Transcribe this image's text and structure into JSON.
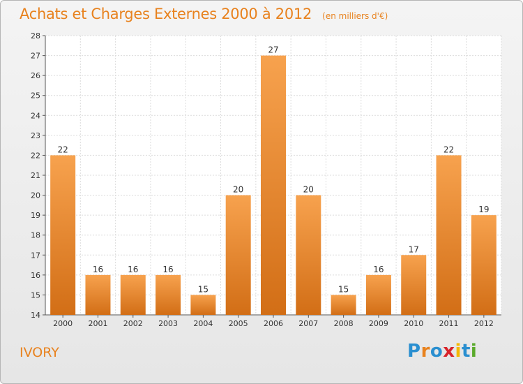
{
  "header": {
    "title": "Achats et Charges Externes 2000 à 2012",
    "unit": "(en milliers d'€)"
  },
  "footer": {
    "commune": "IVORY",
    "logo_letters": [
      "P",
      "r",
      "o",
      "x",
      "i",
      "t",
      "i"
    ],
    "logo_colors": [
      "#2a8fd0",
      "#e8821e",
      "#2a8fd0",
      "#d8232a",
      "#f5b800",
      "#2a8fd0",
      "#5aaa2c"
    ]
  },
  "chart_data": {
    "type": "bar",
    "categories": [
      "2000",
      "2001",
      "2002",
      "2003",
      "2004",
      "2005",
      "2006",
      "2007",
      "2008",
      "2009",
      "2010",
      "2011",
      "2012"
    ],
    "values": [
      22,
      16,
      16,
      16,
      15,
      20,
      27,
      20,
      15,
      16,
      17,
      22,
      19
    ],
    "title": "Achats et Charges Externes 2000 à 2012",
    "subtitle": "(en milliers d'€)",
    "ylim": [
      14,
      28
    ],
    "yticks": [
      14,
      15,
      16,
      17,
      18,
      19,
      20,
      21,
      22,
      23,
      24,
      25,
      26,
      27,
      28
    ],
    "grid": true,
    "data_labels": true,
    "bar_color_top": "#f7a24e",
    "bar_color_bottom": "#d26e16"
  }
}
